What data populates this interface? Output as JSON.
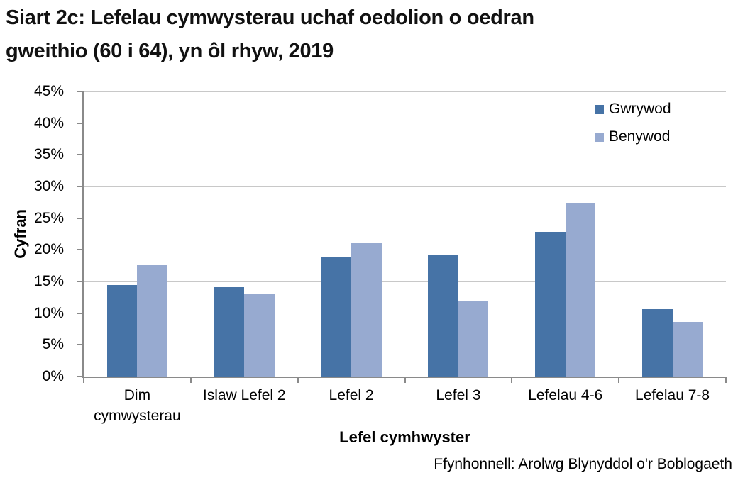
{
  "title": {
    "lines": [
      "Siart 2c: Lefelau cymwysterau uchaf oedolion o oedran",
      "gweithio (60 i 64), yn ôl rhyw, 2019"
    ]
  },
  "chart_data": {
    "type": "bar",
    "title": "Siart 2c: Lefelau cymwysterau uchaf oedolion o oedran gweithio (60 i 64), yn ôl rhyw, 2019",
    "categories": [
      "Dim cymwysterau",
      "Islaw Lefel 2",
      "Lefel 2",
      "Lefel 3",
      "Lefelau 4-6",
      "Lefelau 7-8"
    ],
    "series": [
      {
        "name": "Gwrywod",
        "color": "#4673A6",
        "values": [
          14.4,
          14.1,
          18.9,
          19.1,
          22.8,
          10.6
        ]
      },
      {
        "name": "Benywod",
        "color": "#97AAD0",
        "values": [
          17.6,
          13.1,
          21.2,
          12.0,
          27.4,
          8.6
        ]
      }
    ],
    "xlabel": "Lefel cymhwyster",
    "ylabel": "Cyfran",
    "ylim": [
      0,
      45
    ],
    "ytick_step": 5,
    "ytick_format": "percent",
    "grid": true,
    "legend_position": "top-right-inside"
  },
  "source_note": "Ffynhonnell: Arolwg Blynyddol o'r Boblogaeth",
  "colors": {
    "gridline": "#c8c8c8",
    "axis": "#8a8a8a",
    "title_text": "#111111",
    "body_text": "#000000",
    "background": "#ffffff"
  }
}
